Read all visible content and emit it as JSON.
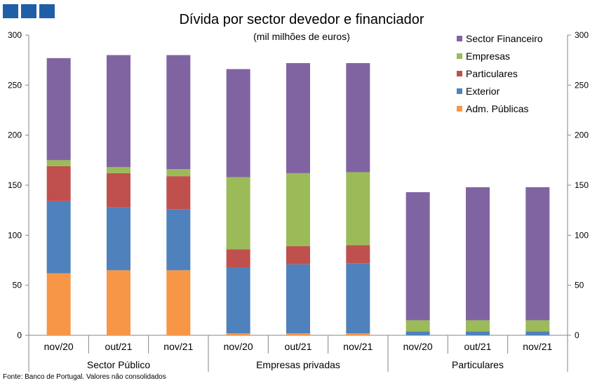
{
  "header": {
    "brand_color": "#1f5fa7",
    "logo_blocks": [
      "logo-block",
      "logo-block",
      "logo-block"
    ]
  },
  "source_note": "Fonte: Banco de Portugal. Valores não consolidados",
  "chart_data": {
    "type": "bar",
    "stacked": true,
    "title": "Dívida por sector devedor e financiador",
    "subtitle": "(mil milhões de euros)",
    "ylim": [
      0,
      300
    ],
    "yticks": [
      0,
      50,
      100,
      150,
      200,
      250,
      300
    ],
    "y_axis_both_sides": true,
    "grid": false,
    "categories": [
      "nov/20",
      "out/21",
      "nov/21",
      "nov/20",
      "out/21",
      "nov/21",
      "nov/20",
      "out/21",
      "nov/21"
    ],
    "groups": [
      {
        "label": "Sector Público",
        "count": 3
      },
      {
        "label": "Empresas privadas",
        "count": 3
      },
      {
        "label": "Particulares",
        "count": 3
      }
    ],
    "legend_position": "top-right",
    "series": [
      {
        "name": "Adm. Públicas",
        "color": "#f79646",
        "values": [
          62,
          65,
          65,
          2,
          2,
          2,
          0,
          0,
          0
        ]
      },
      {
        "name": "Exterior",
        "color": "#4f81bd",
        "values": [
          72,
          63,
          61,
          66,
          69,
          70,
          4,
          4,
          4
        ]
      },
      {
        "name": "Particulares",
        "color": "#c0504d",
        "values": [
          35,
          34,
          33,
          18,
          18,
          18,
          0,
          0,
          0
        ]
      },
      {
        "name": "Empresas",
        "color": "#9bbb59",
        "values": [
          6,
          6,
          7,
          72,
          73,
          73,
          11,
          11,
          11
        ]
      },
      {
        "name": "Sector Financeiro",
        "color": "#8064a2",
        "values": [
          102,
          112,
          114,
          108,
          110,
          109,
          128,
          133,
          133
        ]
      }
    ]
  }
}
